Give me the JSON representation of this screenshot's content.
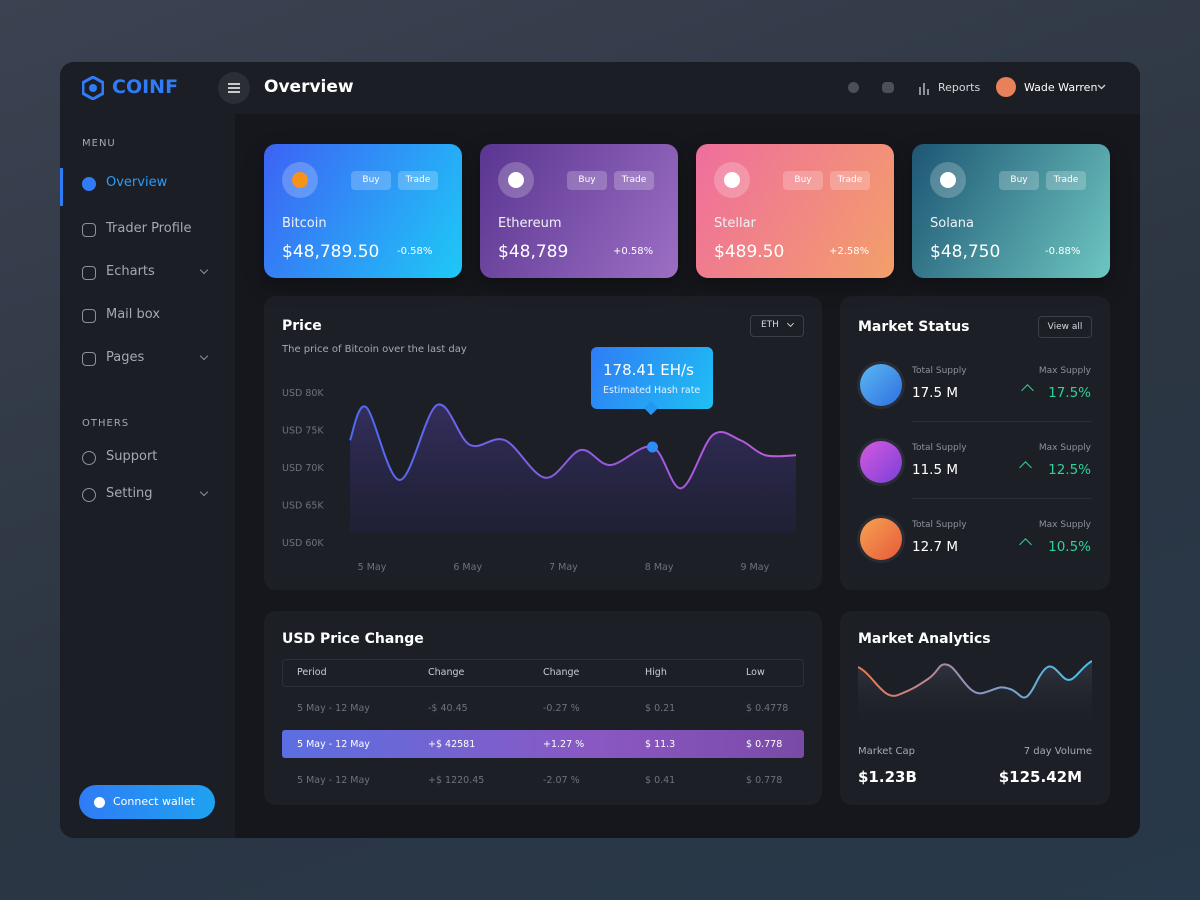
{
  "brand": "COINF",
  "header": {
    "title": "Overview",
    "reports": "Reports",
    "user": "Wade Warren"
  },
  "sidebar": {
    "menu_label": "MENU",
    "menu": [
      "Overview",
      "Trader Profile",
      "Echarts",
      "Mail box",
      "Pages"
    ],
    "others_label": "OTHERS",
    "others": [
      "Support",
      "Setting"
    ],
    "connect": "Connect wallet"
  },
  "cards": [
    {
      "name": "Bitcoin",
      "price": "$48,789.50",
      "change": "-0.58%",
      "buy": "Buy",
      "trade": "Trade"
    },
    {
      "name": "Ethereum",
      "price": "$48,789",
      "change": "+0.58%",
      "buy": "Buy",
      "trade": "Trade"
    },
    {
      "name": "Stellar",
      "price": "$489.50",
      "change": "+2.58%",
      "buy": "Buy",
      "trade": "Trade"
    },
    {
      "name": "Solana",
      "price": "$48,750",
      "change": "-0.88%",
      "buy": "Buy",
      "trade": "Trade"
    }
  ],
  "price_chart": {
    "type": "line",
    "title": "Price",
    "subtitle": "The price of Bitcoin over the last day",
    "selector": "ETH",
    "tooltip_value": "178.41 EH/s",
    "tooltip_label": "Estimated Hash rate",
    "x": [
      4.77,
      4.94,
      5.29,
      5.68,
      6.02,
      6.39,
      6.81,
      7.18,
      7.49,
      7.93,
      8.23,
      8.56,
      8.85,
      9.11,
      9.43
    ],
    "values": [
      73700,
      78100,
      68400,
      78400,
      73100,
      73700,
      68700,
      72400,
      70400,
      72800,
      67300,
      74400,
      73700,
      71700,
      71700
    ],
    "xlim": [
      4.77,
      9.43
    ],
    "ylim": [
      60000,
      80000
    ],
    "yticks": [
      {
        "value": 80000,
        "label": "USD 80K"
      },
      {
        "value": 75000,
        "label": "USD 75K"
      },
      {
        "value": 70000,
        "label": "USD 70K"
      },
      {
        "value": 65000,
        "label": "USD 65K"
      },
      {
        "value": 60000,
        "label": "USD 60K"
      }
    ],
    "xticks": [
      {
        "value": 5,
        "label": "5 May"
      },
      {
        "value": 6,
        "label": "6 May"
      },
      {
        "value": 7,
        "label": "7 May"
      },
      {
        "value": 8,
        "label": "8 May"
      },
      {
        "value": 9,
        "label": "9 May"
      }
    ]
  },
  "market_status": {
    "title": "Market Status",
    "view_all": "View all",
    "rows": [
      {
        "total_label": "Total Supply",
        "total": "17.5 M",
        "max_label": "Max Supply",
        "max": "17.5%"
      },
      {
        "total_label": "Total Supply",
        "total": "11.5 M",
        "max_label": "Max Supply",
        "max": "12.5%"
      },
      {
        "total_label": "Total Supply",
        "total": "12.7 M",
        "max_label": "Max Supply",
        "max": "10.5%"
      }
    ]
  },
  "price_change": {
    "title": "USD Price Change",
    "columns": [
      "Period",
      "Change",
      "Change",
      "High",
      "Low"
    ],
    "rows": [
      [
        "5 May - 12 May",
        "-$ 40.45",
        "-0.27 %",
        "$ 0.21",
        "$ 0.4778"
      ],
      [
        "5 May - 12 May",
        "+$ 42581",
        "+1.27 %",
        "$ 11.3",
        "$ 0.778"
      ],
      [
        "5 May - 12 May",
        "+$ 1220.45",
        "-2.07 %",
        "$ 0.41",
        "$ 0.778"
      ]
    ]
  },
  "analytics": {
    "title": "Market Analytics",
    "cap_label": "Market Cap",
    "cap": "$1.23B",
    "volume_label": "7 day Volume",
    "volume": "$125.42M"
  }
}
